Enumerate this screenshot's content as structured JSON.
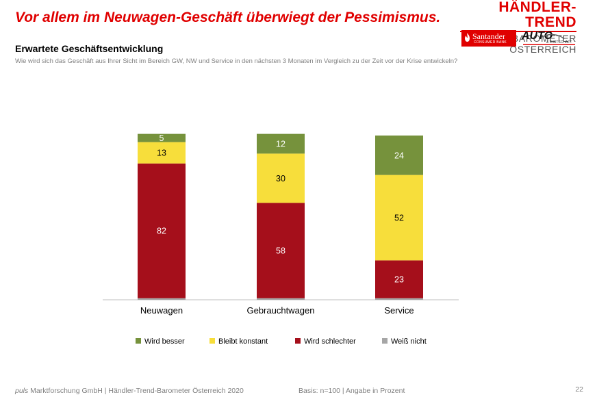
{
  "header": {
    "headline": "Vor allem im Neuwagen-Geschäft überwiegt der Pessimismus.",
    "brand_title": "HÄNDLER-TREND",
    "brand_subtitle": "BAROMETER ÖSTERREICH",
    "logo_santander": "Santander",
    "logo_santander_sub": "CONSUMER BANK",
    "logo_auto": "AUTO",
    "logo_auto_sub": "& WIRTSCHAFT"
  },
  "footer": {
    "company_italic": "puls",
    "company_rest": " Marktforschung GmbH | Händler-Trend-Barometer Österreich 2020",
    "basis": "Basis: n=100 | Angabe in Prozent",
    "page_number": "22"
  },
  "colors": {
    "besser": "#76923c",
    "konstant": "#f7de3b",
    "schlechter": "#a50f1b",
    "weiss_nicht": "#a6a6a6",
    "accent": "#e00000"
  },
  "chart_data": {
    "type": "bar",
    "stacked": true,
    "title": "Erwartete Geschäftsentwicklung",
    "subtitle": "Wie wird sich das Geschäft aus Ihrer Sicht im Bereich GW, NW und Service in den nächsten 3 Monaten im Vergleich zu der Zeit vor der Krise entwickeln?",
    "categories": [
      "Neuwagen",
      "Gebrauchtwagen",
      "Service"
    ],
    "ylim": [
      0,
      100
    ],
    "grid": false,
    "legend_position": "bottom",
    "series": [
      {
        "name": "Wird besser",
        "color": "#76923c",
        "values": [
          5,
          12,
          24
        ],
        "labels": [
          "5",
          "12",
          "24"
        ]
      },
      {
        "name": "Bleibt konstant",
        "color": "#f7de3b",
        "values": [
          13,
          30,
          52
        ],
        "labels": [
          "13",
          "30",
          "52"
        ]
      },
      {
        "name": "Wird schlechter",
        "color": "#a50f1b",
        "values": [
          82,
          58,
          23
        ],
        "labels": [
          "82",
          "58",
          "23"
        ]
      },
      {
        "name": "Weiß nicht",
        "color": "#a6a6a6",
        "values": [
          1,
          1,
          1
        ],
        "labels": [
          "",
          "",
          ""
        ]
      }
    ]
  }
}
